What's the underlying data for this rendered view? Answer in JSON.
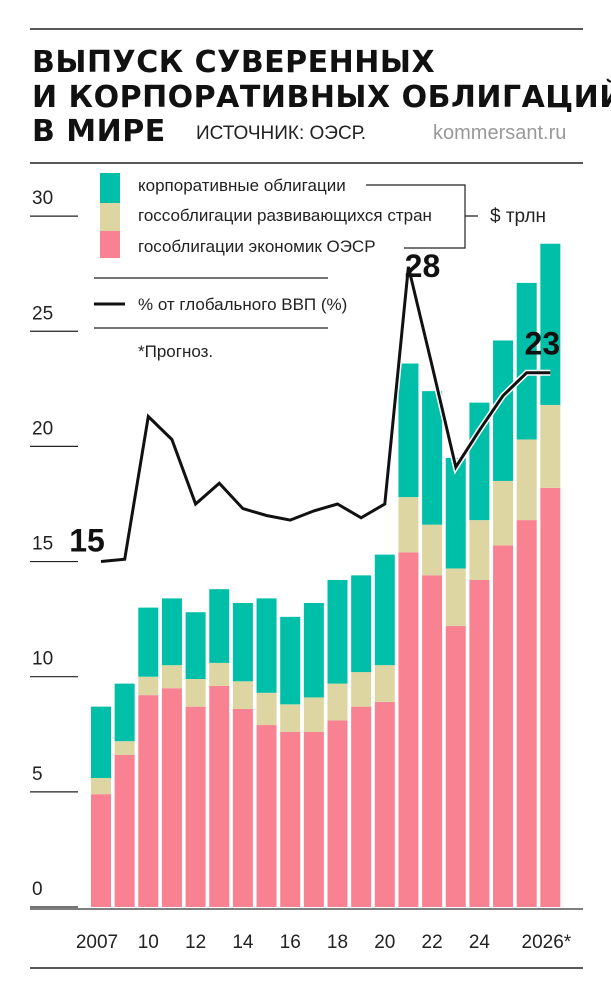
{
  "header": {
    "title_lines": [
      "ВЫПУСК СУВЕРЕННЫХ",
      "И КОРПОРАТИВНЫХ ОБЛИГАЦИЙ",
      "В МИРЕ"
    ],
    "source": "ИСТОЧНИК: ОЭСР.",
    "site": "kommersant.ru"
  },
  "legend": {
    "corporate": "корпоративные облигации",
    "emerging": "госсоблигации развивающихся стран",
    "oecd": "гособлигации экономик ОЭСР",
    "unit": "$ трлн",
    "line": "% от глобального ВВП (%)",
    "note": "*Прогноз."
  },
  "chart_data": {
    "type": "bar",
    "stacked": true,
    "title": "ВЫПУСК СУВЕРЕННЫХ И КОРПОРАТИВНЫХ ОБЛИГАЦИЙ В МИРЕ",
    "ylabel": "$ трлн",
    "ylim": [
      0,
      30
    ],
    "yticks": [
      0,
      5,
      10,
      15,
      20,
      25,
      30
    ],
    "grid": false,
    "legend_position": "top-left",
    "x_tick_labels": [
      "2007",
      "",
      "10",
      "",
      "12",
      "",
      "14",
      "",
      "16",
      "",
      "18",
      "",
      "20",
      "",
      "22",
      "",
      "24",
      "",
      "",
      "2026*"
    ],
    "series": [
      {
        "name": "гособлигации экономик ОЭСР",
        "color": "#f98292",
        "values": [
          4.9,
          6.6,
          9.2,
          9.5,
          8.7,
          9.6,
          8.6,
          7.9,
          7.6,
          7.6,
          8.1,
          8.7,
          8.9,
          15.4,
          14.4,
          12.2,
          14.2,
          15.7,
          16.8,
          18.2
        ]
      },
      {
        "name": "госсоблигации развивающихся стран",
        "color": "#ddd6a2",
        "values": [
          0.7,
          0.6,
          0.8,
          1.0,
          1.2,
          1.0,
          1.2,
          1.4,
          1.2,
          1.5,
          1.6,
          1.5,
          1.6,
          2.4,
          2.2,
          2.5,
          2.6,
          2.8,
          3.5,
          3.6
        ]
      },
      {
        "name": "корпоративные облигации",
        "color": "#00bfa9",
        "values": [
          3.1,
          2.5,
          3.0,
          2.9,
          2.9,
          3.2,
          3.4,
          4.1,
          3.8,
          4.1,
          4.5,
          4.2,
          4.8,
          5.8,
          5.8,
          4.8,
          5.1,
          6.1,
          6.8,
          7.0
        ]
      }
    ],
    "line_series": {
      "name": "% от глобального ВВП (%)",
      "color": "#111111",
      "values": [
        15.0,
        15.1,
        21.3,
        20.3,
        17.5,
        18.4,
        17.3,
        17.0,
        16.8,
        17.2,
        17.5,
        16.9,
        17.5,
        27.8,
        23.5,
        19.1,
        20.7,
        22.2,
        23.2,
        23.2
      ],
      "annotations": [
        {
          "index": 0,
          "label": "15"
        },
        {
          "index": 13,
          "label": "28"
        },
        {
          "index": 19,
          "label": "23"
        }
      ]
    }
  }
}
